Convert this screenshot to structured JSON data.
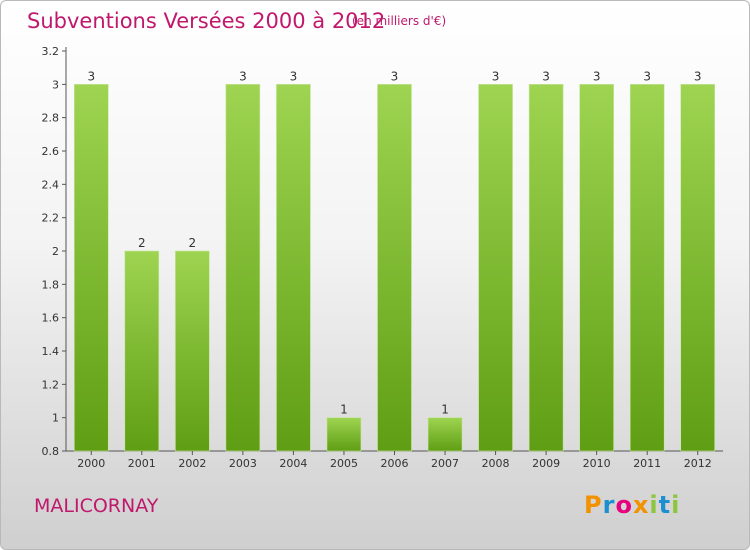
{
  "chart_data": {
    "type": "bar",
    "title": "Subventions Versées 2000 à 2012",
    "subtitle": "(en milliers d'€)",
    "categories": [
      "2000",
      "2001",
      "2002",
      "2003",
      "2004",
      "2005",
      "2006",
      "2007",
      "2008",
      "2009",
      "2010",
      "2011",
      "2012"
    ],
    "values": [
      3,
      2,
      2,
      3,
      3,
      1,
      3,
      1,
      3,
      3,
      3,
      3,
      3
    ],
    "data_labels": [
      "3",
      "2",
      "2",
      "3",
      "3",
      "1",
      "3",
      "1",
      "3",
      "3",
      "3",
      "3",
      "3"
    ],
    "ylim": [
      0.8,
      3.2
    ],
    "yticks": [
      0.8,
      1,
      1.2,
      1.4,
      1.6,
      1.8,
      2,
      2.2,
      2.4,
      2.6,
      2.8,
      3,
      3.2
    ],
    "ytick_labels": [
      "0.8",
      "1",
      "1.2",
      "1.4",
      "1.6",
      "1.8",
      "2",
      "2.2",
      "2.4",
      "2.6",
      "2.8",
      "3",
      "3.2"
    ],
    "grid": false,
    "bar_color": "#8cc63e"
  },
  "commune": "MALICORNAY",
  "logo": {
    "letters": [
      "P",
      "r",
      "o",
      "x",
      "i",
      "t",
      "i"
    ],
    "colors": [
      "#f39200",
      "#1d8fd1",
      "#e6007e",
      "#f39200",
      "#8cc63e",
      "#1d8fd1",
      "#8cc63e"
    ]
  }
}
